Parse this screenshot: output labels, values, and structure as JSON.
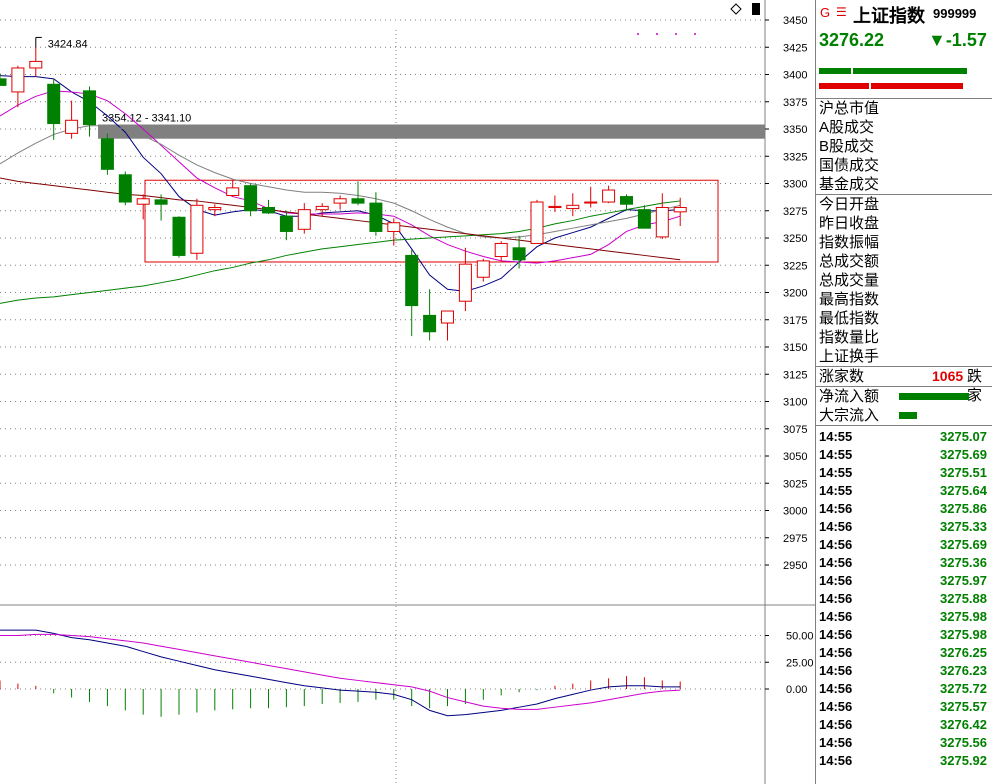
{
  "chart_data": [
    {
      "type": "candlestick",
      "title": "",
      "y_ticks": [
        3450,
        3425,
        3400,
        3375,
        3350,
        3325,
        3300,
        3275,
        3250,
        3225,
        3200,
        3175,
        3150,
        3125,
        3100,
        3075,
        3050,
        3025,
        3000,
        2975,
        2950
      ],
      "ylim": [
        2930,
        3455
      ],
      "annotations": {
        "high_label": "3424.84",
        "gap_label": "3354.12 - 3341.10"
      },
      "candles": [
        {
          "o": 3396,
          "h": 3401,
          "l": 3391,
          "c": 3390
        },
        {
          "o": 3384,
          "h": 3408,
          "l": 3370,
          "c": 3406
        },
        {
          "o": 3406,
          "h": 3425,
          "l": 3398,
          "c": 3412
        },
        {
          "o": 3391,
          "h": 3396,
          "l": 3340,
          "c": 3355
        },
        {
          "o": 3346,
          "h": 3376,
          "l": 3341,
          "c": 3358
        },
        {
          "o": 3385,
          "h": 3389,
          "l": 3343,
          "c": 3354
        },
        {
          "o": 3341,
          "h": 3346,
          "l": 3308,
          "c": 3313
        },
        {
          "o": 3308,
          "h": 3311,
          "l": 3280,
          "c": 3283
        },
        {
          "o": 3281,
          "h": 3290,
          "l": 3267,
          "c": 3286
        },
        {
          "o": 3285,
          "h": 3290,
          "l": 3266,
          "c": 3281
        },
        {
          "o": 3269,
          "h": 3270,
          "l": 3232,
          "c": 3234
        },
        {
          "o": 3236,
          "h": 3286,
          "l": 3230,
          "c": 3280
        },
        {
          "o": 3276,
          "h": 3281,
          "l": 3270,
          "c": 3278
        },
        {
          "o": 3289,
          "h": 3303,
          "l": 3288,
          "c": 3296
        },
        {
          "o": 3298,
          "h": 3300,
          "l": 3270,
          "c": 3275
        },
        {
          "o": 3278,
          "h": 3285,
          "l": 3272,
          "c": 3273
        },
        {
          "o": 3270,
          "h": 3275,
          "l": 3248,
          "c": 3256
        },
        {
          "o": 3258,
          "h": 3282,
          "l": 3254,
          "c": 3276
        },
        {
          "o": 3276,
          "h": 3282,
          "l": 3270,
          "c": 3279
        },
        {
          "o": 3282,
          "h": 3289,
          "l": 3276,
          "c": 3286
        },
        {
          "o": 3286,
          "h": 3302,
          "l": 3280,
          "c": 3282
        },
        {
          "o": 3282,
          "h": 3292,
          "l": 3252,
          "c": 3256
        },
        {
          "o": 3256,
          "h": 3268,
          "l": 3243,
          "c": 3264
        },
        {
          "o": 3234,
          "h": 3239,
          "l": 3160,
          "c": 3188
        },
        {
          "o": 3179,
          "h": 3203,
          "l": 3156,
          "c": 3164
        },
        {
          "o": 3172,
          "h": 3182,
          "l": 3156,
          "c": 3183
        },
        {
          "o": 3192,
          "h": 3241,
          "l": 3183,
          "c": 3226
        },
        {
          "o": 3214,
          "h": 3231,
          "l": 3210,
          "c": 3229
        },
        {
          "o": 3233,
          "h": 3247,
          "l": 3229,
          "c": 3245
        },
        {
          "o": 3241,
          "h": 3252,
          "l": 3222,
          "c": 3230
        },
        {
          "o": 3245,
          "h": 3285,
          "l": 3245,
          "c": 3283
        },
        {
          "o": 3278,
          "h": 3289,
          "l": 3274,
          "c": 3279
        },
        {
          "o": 3277,
          "h": 3291,
          "l": 3270,
          "c": 3280
        },
        {
          "o": 3283,
          "h": 3297,
          "l": 3278,
          "c": 3283
        },
        {
          "o": 3283,
          "h": 3298,
          "l": 3282,
          "c": 3294
        },
        {
          "o": 3288,
          "h": 3290,
          "l": 3275,
          "c": 3281
        },
        {
          "o": 3276,
          "h": 3280,
          "l": 3261,
          "c": 3259
        },
        {
          "o": 3251,
          "h": 3291,
          "l": 3249,
          "c": 3278
        },
        {
          "o": 3274,
          "h": 3287,
          "l": 3261,
          "c": 3278
        }
      ],
      "ma_series": [
        {
          "color": "#000080",
          "values": [
            3399,
            3398,
            3398,
            3396,
            3384,
            3375,
            3362,
            3347,
            3324,
            3309,
            3288,
            3276,
            3271,
            3274,
            3276,
            3275,
            3270,
            3270,
            3273,
            3274,
            3275,
            3271,
            3263,
            3240,
            3216,
            3203,
            3201,
            3206,
            3213,
            3228,
            3242,
            3250,
            3255,
            3260,
            3268,
            3276,
            3275,
            3275,
            3276
          ]
        },
        {
          "color": "#cc00cc",
          "values": [
            3362,
            3372,
            3380,
            3385,
            3384,
            3382,
            3376,
            3364,
            3350,
            3335,
            3320,
            3305,
            3296,
            3288,
            3284,
            3277,
            3273,
            3272,
            3272,
            3272,
            3273,
            3272,
            3270,
            3262,
            3252,
            3244,
            3238,
            3233,
            3229,
            3228,
            3227,
            3229,
            3232,
            3235,
            3244,
            3256,
            3262,
            3265,
            3270
          ]
        },
        {
          "color": "#808080",
          "values": [
            3318,
            3328,
            3337,
            3345,
            3350,
            3353,
            3353,
            3350,
            3344,
            3336,
            3326,
            3317,
            3310,
            3304,
            3300,
            3297,
            3294,
            3292,
            3292,
            3291,
            3289,
            3286,
            3282,
            3275,
            3267,
            3260,
            3254,
            3251,
            3250,
            3251,
            3253,
            3256,
            3259,
            3262,
            3265,
            3268,
            3272,
            3276,
            3280
          ]
        },
        {
          "color": "#008000",
          "values": [
            3190,
            3193,
            3195,
            3196,
            3198,
            3200,
            3202,
            3204,
            3206,
            3209,
            3212,
            3216,
            3220,
            3223,
            3227,
            3230,
            3234,
            3237,
            3240,
            3242,
            3244,
            3246,
            3248,
            3249,
            3250,
            3251,
            3252,
            3253,
            3254,
            3256,
            3259,
            3263,
            3266,
            3270,
            3273,
            3276,
            3279,
            3282,
            3284
          ]
        },
        {
          "color": "#800000",
          "values": [
            3305,
            3302,
            3300,
            3298,
            3296,
            3294,
            3292,
            3290,
            3289,
            3287,
            3285,
            3284,
            3282,
            3280,
            3278,
            3276,
            3274,
            3272,
            3270,
            3268,
            3266,
            3264,
            3262,
            3260,
            3258,
            3256,
            3254,
            3252,
            3250,
            3248,
            3246,
            3244,
            3242,
            3240,
            3238,
            3236,
            3234,
            3232,
            3230
          ]
        }
      ]
    },
    {
      "type": "macd",
      "y_ticks": [
        50,
        25,
        0
      ],
      "ylim": [
        -42,
        62
      ],
      "dif": [
        55,
        55,
        55,
        52,
        48,
        46,
        43,
        40,
        35,
        30,
        26,
        22,
        18,
        15,
        12,
        9,
        6,
        3,
        1,
        -1,
        -2,
        -3,
        -5,
        -10,
        -20,
        -25,
        -24,
        -22,
        -20,
        -17,
        -14,
        -9,
        -5,
        -1,
        2,
        3,
        3,
        2,
        2
      ],
      "dea": [
        50,
        50,
        51,
        51,
        50,
        49,
        47,
        45,
        43,
        40,
        37,
        34,
        31,
        28,
        25,
        22,
        19,
        16,
        13,
        10,
        8,
        6,
        4,
        2,
        -2,
        -8,
        -12,
        -16,
        -18,
        -19,
        -19,
        -17,
        -15,
        -13,
        -10,
        -7,
        -4,
        -2,
        -1
      ],
      "macd_bars": [
        8,
        5,
        3,
        -4,
        -8,
        -12,
        -16,
        -20,
        -24,
        -26,
        -24,
        -22,
        -20,
        -19,
        -18,
        -18,
        -17,
        -16,
        -14,
        -13,
        -12,
        -10,
        -10,
        -16,
        -18,
        -16,
        -14,
        -10,
        -6,
        -3,
        -1,
        3,
        5,
        8,
        10,
        12,
        11,
        8,
        7
      ]
    }
  ],
  "panel": {
    "g_mark": "G",
    "menu_icon": "menu-icon",
    "name": "上证指数",
    "code": "999999",
    "price": "3276.22",
    "change": "▼-1.57",
    "labels_a": [
      "沪总市值",
      "A股成交",
      "B股成交",
      "国债成交",
      "基金成交"
    ],
    "labels_b": [
      "今日开盘",
      "昨日收盘",
      "指数振幅",
      "总成交额",
      "总成交量",
      "最高指数",
      "最低指数",
      "指数量比",
      "上证换手"
    ],
    "up_label": "涨家数",
    "up_value": "1065",
    "down_label": "跌家",
    "net_inflow_label": "净流入额",
    "block_inflow_label": "大宗流入",
    "ticks": [
      {
        "time": "14:55",
        "price": "3275.07"
      },
      {
        "time": "14:55",
        "price": "3275.69"
      },
      {
        "time": "14:55",
        "price": "3275.51"
      },
      {
        "time": "14:55",
        "price": "3275.64"
      },
      {
        "time": "14:56",
        "price": "3275.86"
      },
      {
        "time": "14:56",
        "price": "3275.33"
      },
      {
        "time": "14:56",
        "price": "3275.69"
      },
      {
        "time": "14:56",
        "price": "3275.36"
      },
      {
        "time": "14:56",
        "price": "3275.97"
      },
      {
        "time": "14:56",
        "price": "3275.88"
      },
      {
        "time": "14:56",
        "price": "3275.98"
      },
      {
        "time": "14:56",
        "price": "3275.98"
      },
      {
        "time": "14:56",
        "price": "3276.25"
      },
      {
        "time": "14:56",
        "price": "3276.23"
      },
      {
        "time": "14:56",
        "price": "3275.72"
      },
      {
        "time": "14:56",
        "price": "3275.57"
      },
      {
        "time": "14:56",
        "price": "3276.42"
      },
      {
        "time": "14:56",
        "price": "3275.56"
      },
      {
        "time": "14:56",
        "price": "3275.92"
      }
    ]
  },
  "colors": {
    "up": "#e00000",
    "down": "#008000",
    "grid": "#808080"
  }
}
